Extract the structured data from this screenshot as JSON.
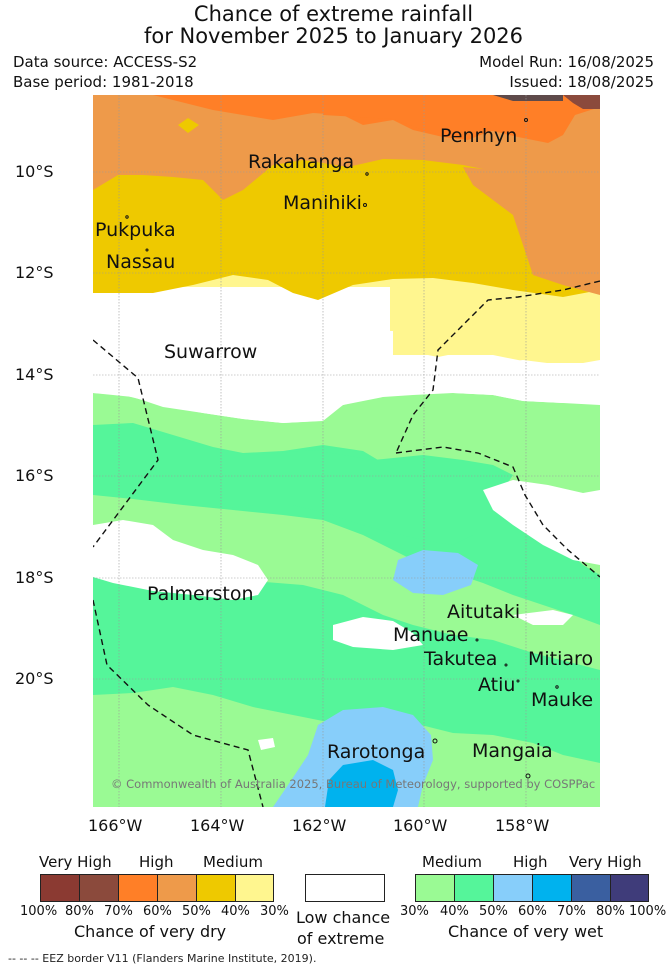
{
  "title": {
    "line1": "Chance of extreme rainfall",
    "line2": "for November 2025 to January 2026"
  },
  "meta": {
    "data_source": "Data source: ACCESS-S2",
    "base_period": "Base period: 1981-2018",
    "model_run": "Model Run: 16/08/2025",
    "issued": "Issued: 18/08/2025"
  },
  "axes": {
    "latitude_labels": [
      "10°S",
      "12°S",
      "14°S",
      "16°S",
      "18°S",
      "20°S"
    ],
    "longitude_labels": [
      "166°W",
      "164°W",
      "162°W",
      "160°W",
      "158°W"
    ]
  },
  "places": {
    "penrhyn": "Penrhyn",
    "rakahanga": "Rakahanga",
    "manihiki": "Manihiki",
    "pukpuka": "Pukpuka",
    "nassau": "Nassau",
    "suwarrow": "Suwarrow",
    "palmerston": "Palmerston",
    "aitutaki": "Aitutaki",
    "manuae": "Manuae",
    "takutea": "Takutea",
    "mitiaro": "Mitiaro",
    "atiu": "Atiu",
    "mauke": "Mauke",
    "rarotonga": "Rarotonga",
    "mangaia": "Mangaia"
  },
  "copyright": "© Commonwealth of Australia 2025, Bureau of Meteorology, supported by COSPPac",
  "legend": {
    "dry": {
      "headers": [
        "Very High",
        "High",
        "Medium"
      ],
      "ticks": [
        "100%",
        "80%",
        "70%",
        "60%",
        "50%",
        "40%",
        "30%"
      ],
      "caption": "Chance of very dry",
      "colors": [
        "#8b3a32",
        "#8b4a3c",
        "#ff7f27",
        "#ee9a4a",
        "#eec900",
        "#fff68f"
      ]
    },
    "low": {
      "caption_line1": "Low chance",
      "caption_line2": "of extreme",
      "color": "#ffffff"
    },
    "wet": {
      "headers": [
        "Medium",
        "High",
        "Very High"
      ],
      "ticks": [
        "30%",
        "40%",
        "50%",
        "60%",
        "70%",
        "80%",
        "100%"
      ],
      "caption": "Chance of very wet",
      "colors": [
        "#9afa94",
        "#55f59a",
        "#87cefa",
        "#00b2ee",
        "#3a5fa0",
        "#3f3c7a"
      ]
    }
  },
  "eez_note": "--  --  -- EEZ border V11 (Flanders Marine Institute, 2019)."
}
